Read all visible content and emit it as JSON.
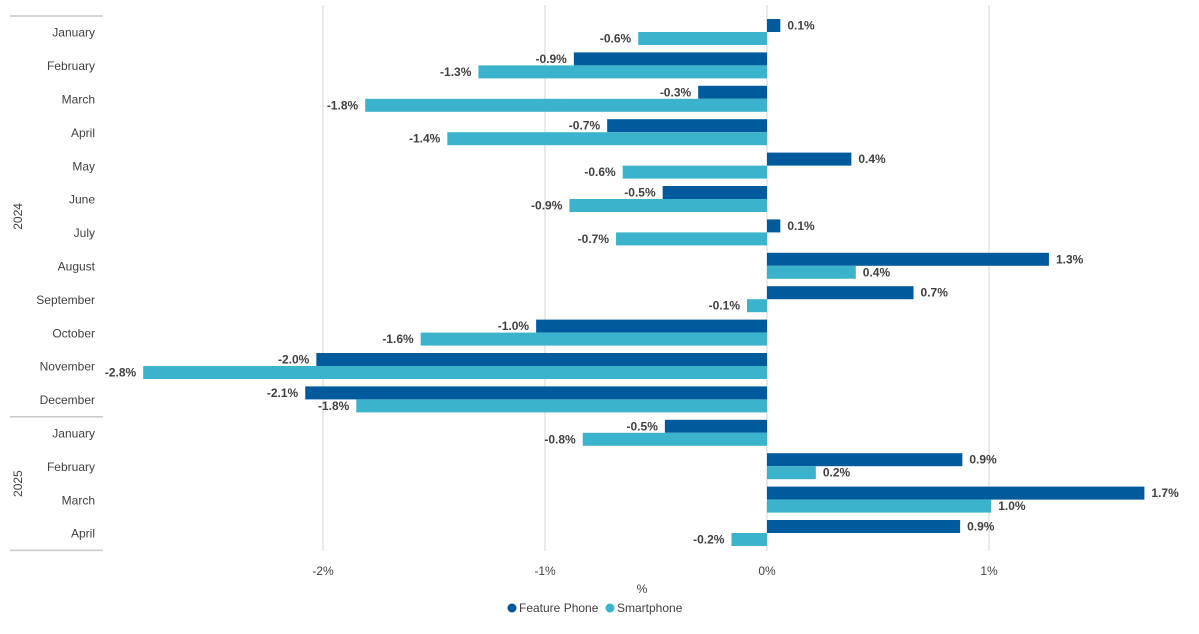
{
  "chart_data": {
    "type": "bar",
    "orientation": "horizontal",
    "xlabel": "%",
    "xlim": [
      -2.85,
      1.85
    ],
    "xticks": [
      -2,
      -1,
      0,
      1
    ],
    "xtick_labels": [
      "-2%",
      "-1%",
      "0%",
      "1%"
    ],
    "grid": true,
    "legend_position": "bottom",
    "groups": [
      {
        "label": "2024",
        "categories": [
          "January",
          "February",
          "March",
          "April",
          "May",
          "June",
          "July",
          "August",
          "September",
          "October",
          "November",
          "December"
        ]
      },
      {
        "label": "2025",
        "categories": [
          "January",
          "February",
          "March",
          "April"
        ]
      }
    ],
    "series": [
      {
        "name": "Feature Phone",
        "color": "#005a9c",
        "values": [
          0.06,
          -0.87,
          -0.31,
          -0.72,
          0.38,
          -0.47,
          0.06,
          1.27,
          0.66,
          -1.04,
          -2.03,
          -2.08,
          -0.46,
          0.88,
          1.7,
          0.87
        ],
        "labels": [
          "0.1%",
          "-0.9%",
          "-0.3%",
          "-0.7%",
          "0.4%",
          "-0.5%",
          "0.1%",
          "1.3%",
          "0.7%",
          "-1.0%",
          "-2.0%",
          "-2.1%",
          "-0.5%",
          "0.9%",
          "1.7%",
          "0.9%"
        ]
      },
      {
        "name": "Smartphone",
        "color": "#3bb3cc",
        "values": [
          -0.58,
          -1.3,
          -1.81,
          -1.44,
          -0.65,
          -0.89,
          -0.68,
          0.4,
          -0.09,
          -1.56,
          -2.81,
          -1.85,
          -0.83,
          0.22,
          1.01,
          -0.16
        ],
        "labels": [
          "-0.6%",
          "-1.3%",
          "-1.8%",
          "-1.4%",
          "-0.6%",
          "-0.9%",
          "-0.7%",
          "0.4%",
          "-0.1%",
          "-1.6%",
          "-2.8%",
          "-1.8%",
          "-0.8%",
          "0.2%",
          "1.0%",
          "-0.2%"
        ]
      }
    ]
  }
}
